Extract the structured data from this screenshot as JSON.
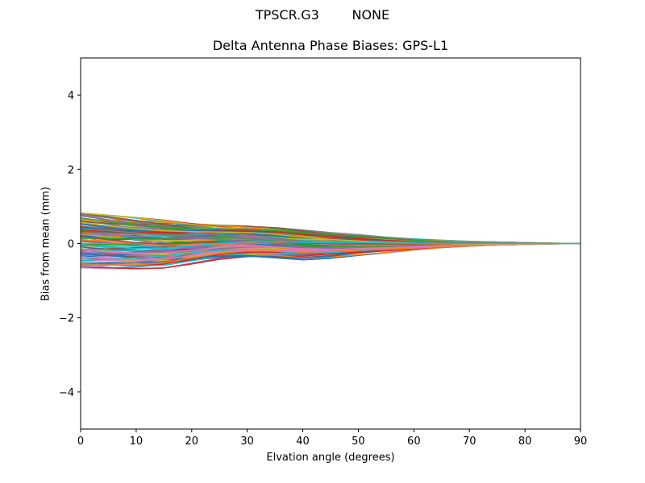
{
  "figure": {
    "suptitle": "TPSCR.G3        NONE",
    "title": "Delta Antenna Phase Biases: GPS-L1",
    "xlabel": "Elvation angle (degrees)",
    "ylabel": "Bias from mean (mm)"
  },
  "chart_data": {
    "type": "line",
    "title": "Delta Antenna Phase Biases: GPS-L1",
    "suptitle": "TPSCR.G3        NONE",
    "xlabel": "Elvation angle (degrees)",
    "ylabel": "Bias from mean (mm)",
    "xlim": [
      0,
      90
    ],
    "ylim": [
      -5,
      5
    ],
    "xticks": [
      0,
      10,
      20,
      30,
      40,
      50,
      60,
      70,
      80,
      90
    ],
    "yticks": [
      -4,
      -2,
      0,
      2,
      4
    ],
    "grid": false,
    "legend": null,
    "description": "Many (~100+) overlapping per-azimuth curves in matplotlib default color cycle; envelope spans about -0.65 to +0.8 mm at 0 deg elevation, narrowing to 0 at 90 deg.",
    "x": [
      0,
      5,
      10,
      15,
      20,
      25,
      30,
      35,
      40,
      45,
      50,
      55,
      60,
      65,
      70,
      75,
      80,
      85,
      90
    ],
    "envelope_upper": [
      0.82,
      0.76,
      0.7,
      0.64,
      0.58,
      0.53,
      0.5,
      0.45,
      0.37,
      0.3,
      0.25,
      0.19,
      0.14,
      0.1,
      0.07,
      0.05,
      0.03,
      0.01,
      0.0
    ],
    "envelope_lower": [
      -0.65,
      -0.66,
      -0.68,
      -0.66,
      -0.55,
      -0.44,
      -0.4,
      -0.42,
      -0.45,
      -0.4,
      -0.32,
      -0.25,
      -0.18,
      -0.12,
      -0.08,
      -0.05,
      -0.03,
      -0.01,
      0.0
    ],
    "series_count_estimate": 120,
    "colors": [
      "#1f77b4",
      "#ff7f0e",
      "#2ca02c",
      "#d62728",
      "#9467bd",
      "#8c564b",
      "#e377c2",
      "#7f7f7f",
      "#bcbd22",
      "#17becf"
    ]
  }
}
